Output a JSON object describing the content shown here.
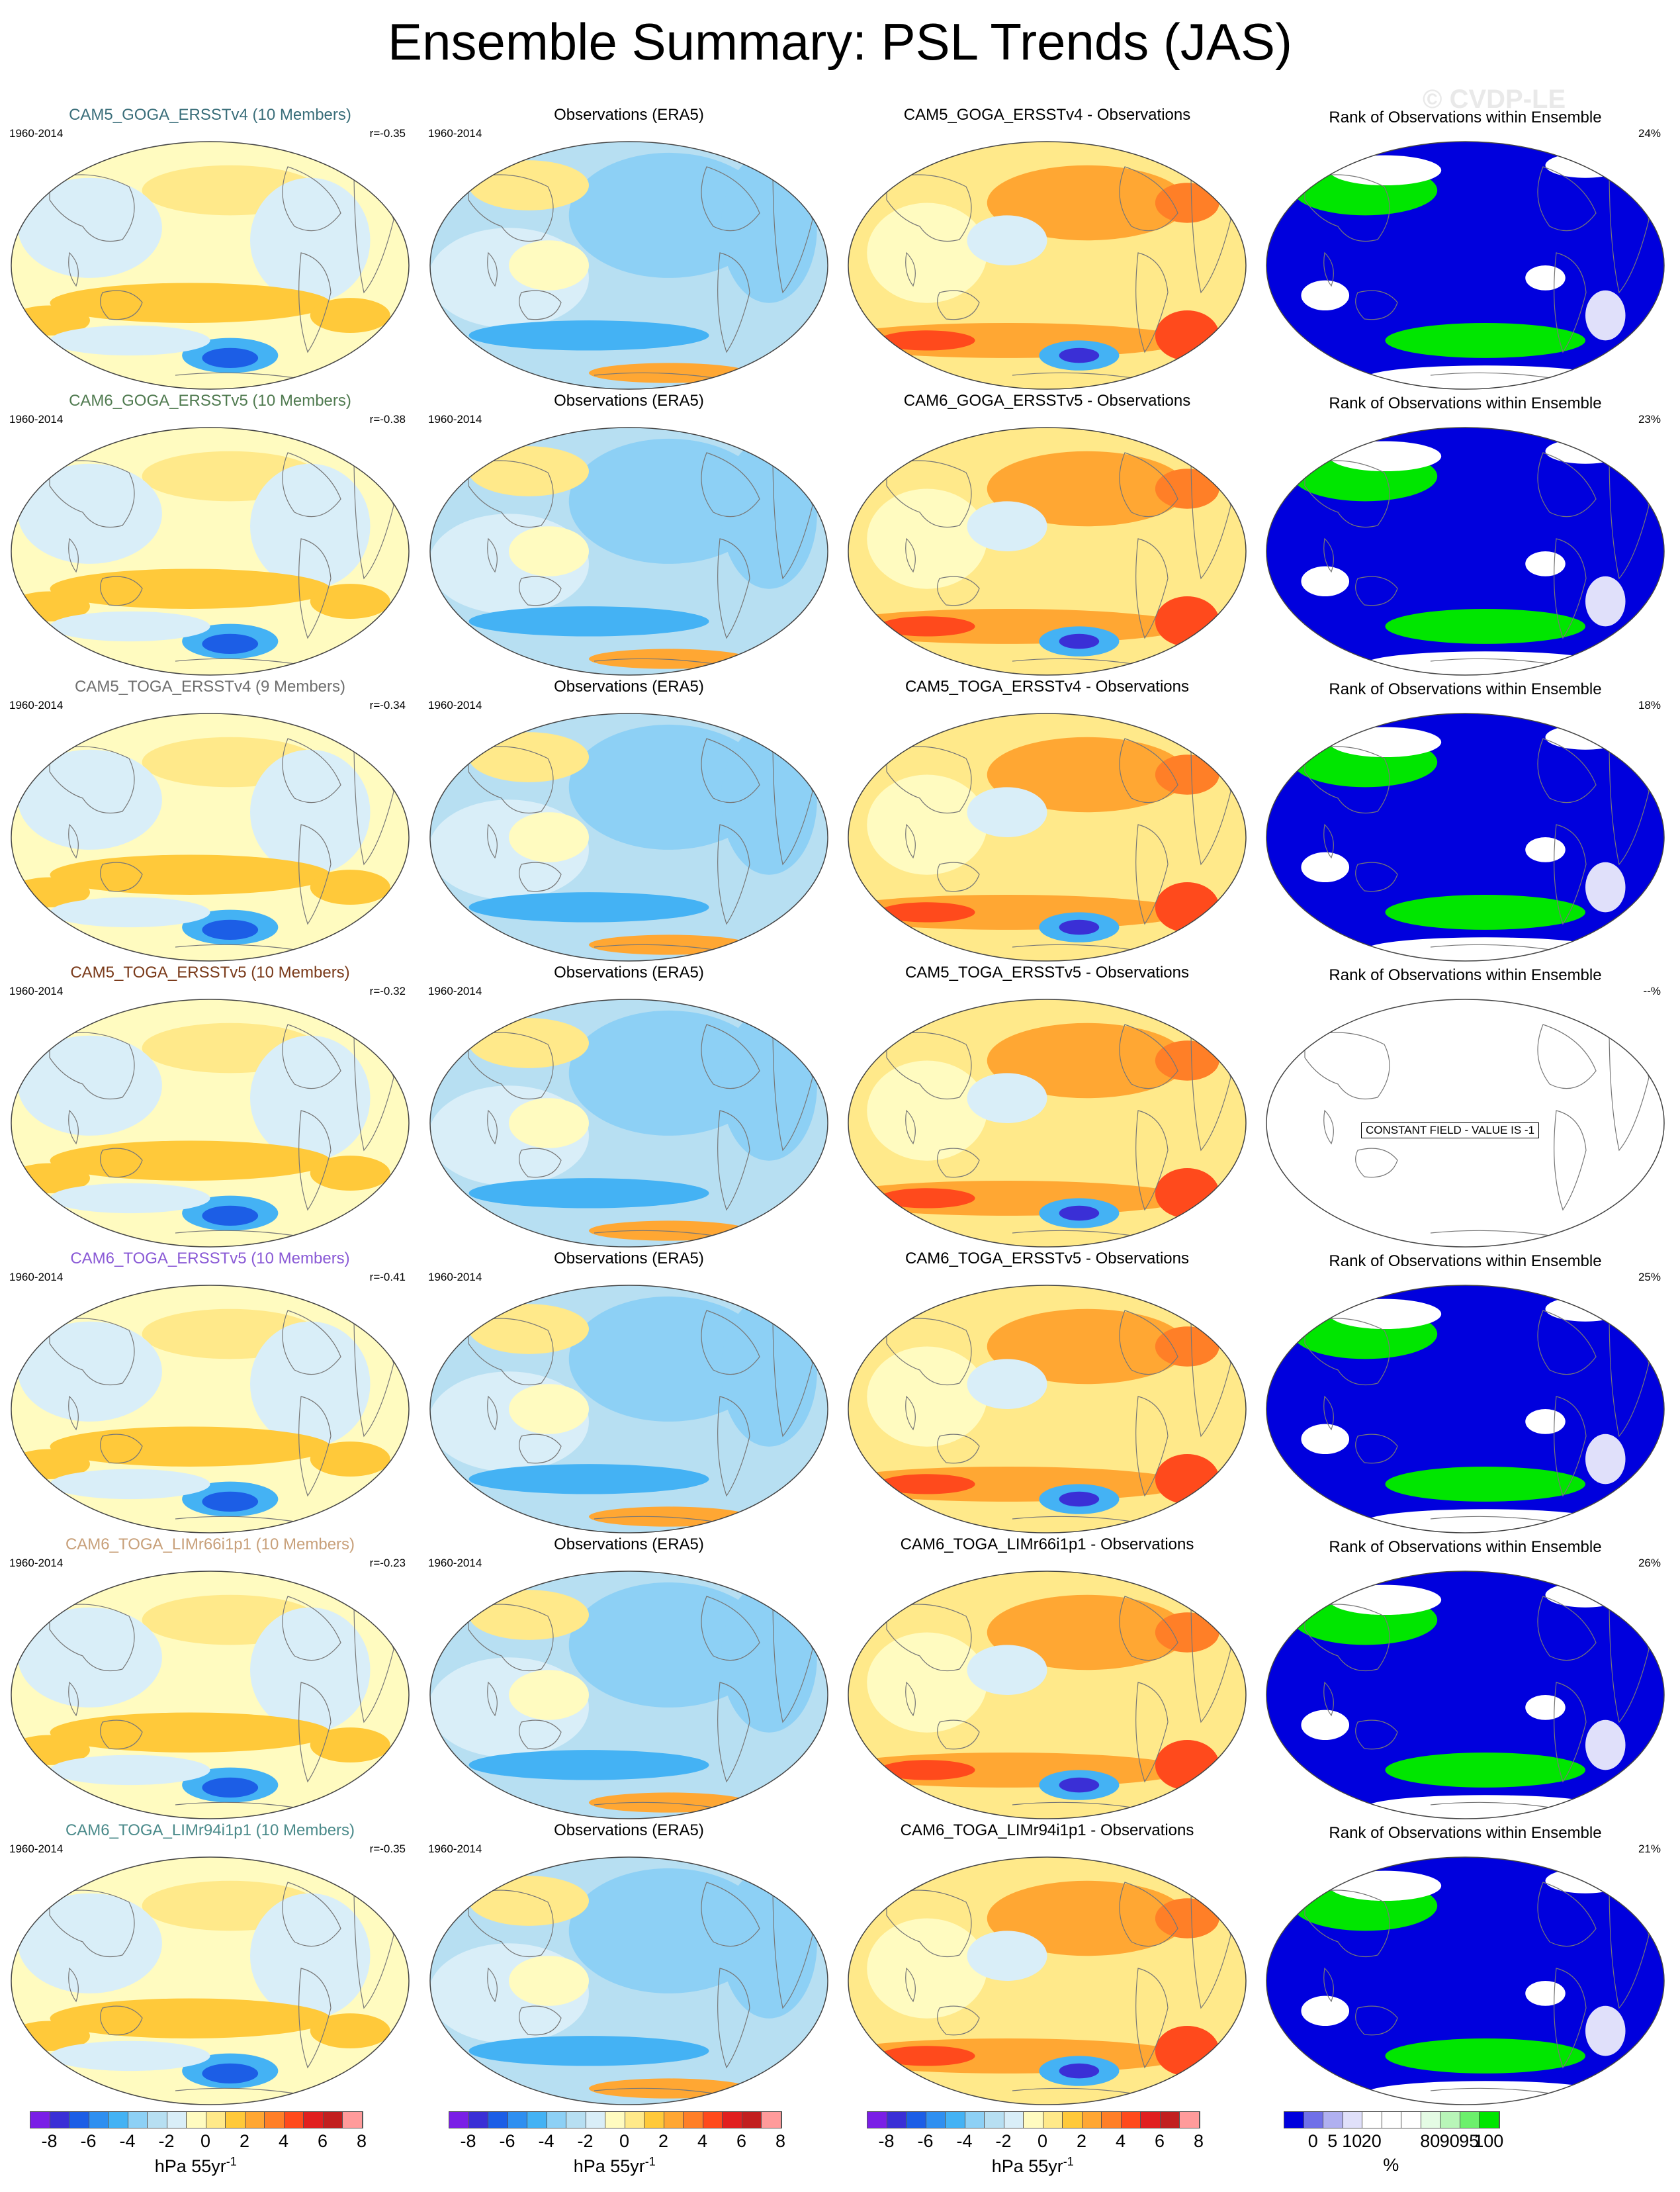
{
  "title": "Ensemble Summary: PSL Trends (JAS)",
  "watermark": "© CVDP-LE",
  "colors": {
    "trend_scale": [
      "#7a1fe6",
      "#3a2fd6",
      "#1c5ee6",
      "#2f8ff0",
      "#44b2f4",
      "#8dd0f5",
      "#b7dff2",
      "#d9eef8",
      "#fffbc0",
      "#ffe98a",
      "#ffc93a",
      "#ffa733",
      "#ff7f27",
      "#ff4a1c",
      "#e11f1f",
      "#c21f1f",
      "#ff9b9b"
    ],
    "rank_scale": [
      "#0000dd",
      "#7070e8",
      "#b0b0f0",
      "#e0e0fa",
      "#ffffff",
      "#e4fbe4",
      "#b8f5b8",
      "#6cf06c",
      "#00e600"
    ]
  },
  "rows": [
    {
      "model": "CAM5_GOGA_ERSSTv4 (10 Members)",
      "model_color": "#3a6e7a",
      "years": "1960-2014",
      "r": "r=-0.35",
      "obs_title": "Observations (ERA5)",
      "obs_years": "1960-2014",
      "diff_title": "CAM5_GOGA_ERSSTv4 - Observations",
      "rank_title": "Rank of Observations within Ensemble",
      "rank_pct": "24%"
    },
    {
      "model": "CAM6_GOGA_ERSSTv5 (10 Members)",
      "model_color": "#4f7a4f",
      "years": "1960-2014",
      "r": "r=-0.38",
      "obs_title": "Observations (ERA5)",
      "obs_years": "1960-2014",
      "diff_title": "CAM6_GOGA_ERSSTv5 - Observations",
      "rank_title": "Rank of Observations within Ensemble",
      "rank_pct": "23%"
    },
    {
      "model": "CAM5_TOGA_ERSSTv4 (9 Members)",
      "model_color": "#6e6e6e",
      "years": "1960-2014",
      "r": "r=-0.34",
      "obs_title": "Observations (ERA5)",
      "obs_years": "1960-2014",
      "diff_title": "CAM5_TOGA_ERSSTv4 - Observations",
      "rank_title": "Rank of Observations within Ensemble",
      "rank_pct": "18%"
    },
    {
      "model": "CAM5_TOGA_ERSSTv5 (10 Members)",
      "model_color": "#7a3a1a",
      "years": "1960-2014",
      "r": "r=-0.32",
      "obs_title": "Observations (ERA5)",
      "obs_years": "1960-2014",
      "diff_title": "CAM5_TOGA_ERSSTv5 - Observations",
      "rank_title": "Rank of Observations within Ensemble",
      "rank_pct": "--%",
      "rank_constant": "CONSTANT FIELD - VALUE IS -1"
    },
    {
      "model": "CAM6_TOGA_ERSSTv5 (10 Members)",
      "model_color": "#8a5ad6",
      "years": "1960-2014",
      "r": "r=-0.41",
      "obs_title": "Observations (ERA5)",
      "obs_years": "1960-2014",
      "diff_title": "CAM6_TOGA_ERSSTv5 - Observations",
      "rank_title": "Rank of Observations within Ensemble",
      "rank_pct": "25%"
    },
    {
      "model": "CAM6_TOGA_LIMr66i1p1 (10 Members)",
      "model_color": "#c8a07a",
      "years": "1960-2014",
      "r": "r=-0.23",
      "obs_title": "Observations (ERA5)",
      "obs_years": "1960-2014",
      "diff_title": "CAM6_TOGA_LIMr66i1p1 - Observations",
      "rank_title": "Rank of Observations within Ensemble",
      "rank_pct": "26%"
    },
    {
      "model": "CAM6_TOGA_LIMr94i1p1 (10 Members)",
      "model_color": "#4a8a8a",
      "years": "1960-2014",
      "r": "r=-0.35",
      "obs_title": "Observations (ERA5)",
      "obs_years": "1960-2014",
      "diff_title": "CAM6_TOGA_LIMr94i1p1 - Observations",
      "rank_title": "Rank of Observations within Ensemble",
      "rank_pct": "21%"
    }
  ],
  "legends": {
    "trend_ticks": [
      "-8",
      "-6",
      "-4",
      "-2",
      "0",
      "2",
      "4",
      "6",
      "8"
    ],
    "trend_units": "hPa 55yr",
    "trend_units_sup": "-1",
    "rank_ticks": [
      "0",
      "5",
      "10",
      "20",
      "80",
      "90",
      "95",
      "100"
    ],
    "rank_units": "%"
  }
}
